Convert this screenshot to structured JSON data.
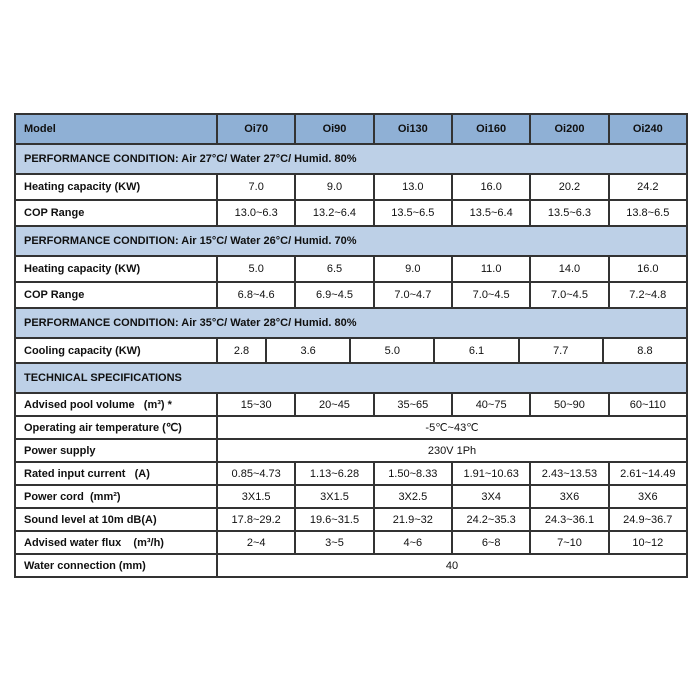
{
  "colors": {
    "page_bg": "#ffffff",
    "model_header_bg": "#8fb0d5",
    "section_header_bg": "#bdd0e7",
    "border": "#333333",
    "text": "#101010"
  },
  "table": {
    "header": {
      "label": "Model",
      "models": [
        "Oi70",
        "Oi90",
        "Oi130",
        "Oi160",
        "Oi200",
        "Oi240"
      ]
    },
    "rows": [
      {
        "type": "section",
        "label": "PERFORMANCE CONDITION: Air 27°C/ Water 27°C/ Humid. 80%"
      },
      {
        "type": "data",
        "label": "Heating capacity (KW)",
        "values": [
          "7.0",
          "9.0",
          "13.0",
          "16.0",
          "20.2",
          "24.2"
        ]
      },
      {
        "type": "data",
        "label": "COP Range",
        "values": [
          "13.0~6.3",
          "13.2~6.4",
          "13.5~6.5",
          "13.5~6.4",
          "13.5~6.3",
          "13.8~6.5"
        ]
      },
      {
        "type": "section",
        "label": "PERFORMANCE CONDITION: Air 15°C/ Water 26°C/ Humid. 70%"
      },
      {
        "type": "data",
        "label": "Heating capacity (KW)",
        "values": [
          "5.0",
          "6.5",
          "9.0",
          "11.0",
          "14.0",
          "16.0"
        ]
      },
      {
        "type": "data",
        "label": "COP Range",
        "values": [
          "6.8~4.6",
          "6.9~4.5",
          "7.0~4.7",
          "7.0~4.5",
          "7.0~4.5",
          "7.2~4.8"
        ]
      },
      {
        "type": "section",
        "label": "PERFORMANCE CONDITION: Air 35°C/ Water 28°C/ Humid. 80%"
      },
      {
        "type": "data",
        "label": "Cooling capacity (KW)",
        "values": [
          "2.8",
          "3.6",
          "5.0",
          "6.1",
          "7.7",
          "8.8"
        ]
      },
      {
        "type": "section",
        "label": "TECHNICAL SPECIFICATIONS"
      },
      {
        "type": "data",
        "label": "Advised pool volume   (m³) *",
        "values": [
          "15~30",
          "20~45",
          "35~65",
          "40~75",
          "50~90",
          "60~110"
        ]
      },
      {
        "type": "span",
        "label": "Operating air temperature (℃)",
        "value": "-5℃~43℃"
      },
      {
        "type": "span",
        "label": "Power supply",
        "value": "230V 1Ph"
      },
      {
        "type": "data",
        "label": "Rated input current   (A)",
        "values": [
          "0.85~4.73",
          "1.13~6.28",
          "1.50~8.33",
          "1.91~10.63",
          "2.43~13.53",
          "2.61~14.49"
        ]
      },
      {
        "type": "data",
        "label": "Power cord  (mm²)",
        "values": [
          "3X1.5",
          "3X1.5",
          "3X2.5",
          "3X4",
          "3X6",
          "3X6"
        ]
      },
      {
        "type": "data",
        "label": "Sound level at 10m dB(A)",
        "values": [
          "17.8~29.2",
          "19.6~31.5",
          "21.9~32",
          "24.2~35.3",
          "24.3~36.1",
          "24.9~36.7"
        ]
      },
      {
        "type": "data",
        "label": "Advised water flux    (m³/h)",
        "values": [
          "2~4",
          "3~5",
          "4~6",
          "6~8",
          "7~10",
          "10~12"
        ]
      },
      {
        "type": "span",
        "label": "Water connection (mm)",
        "value": "40"
      }
    ]
  }
}
